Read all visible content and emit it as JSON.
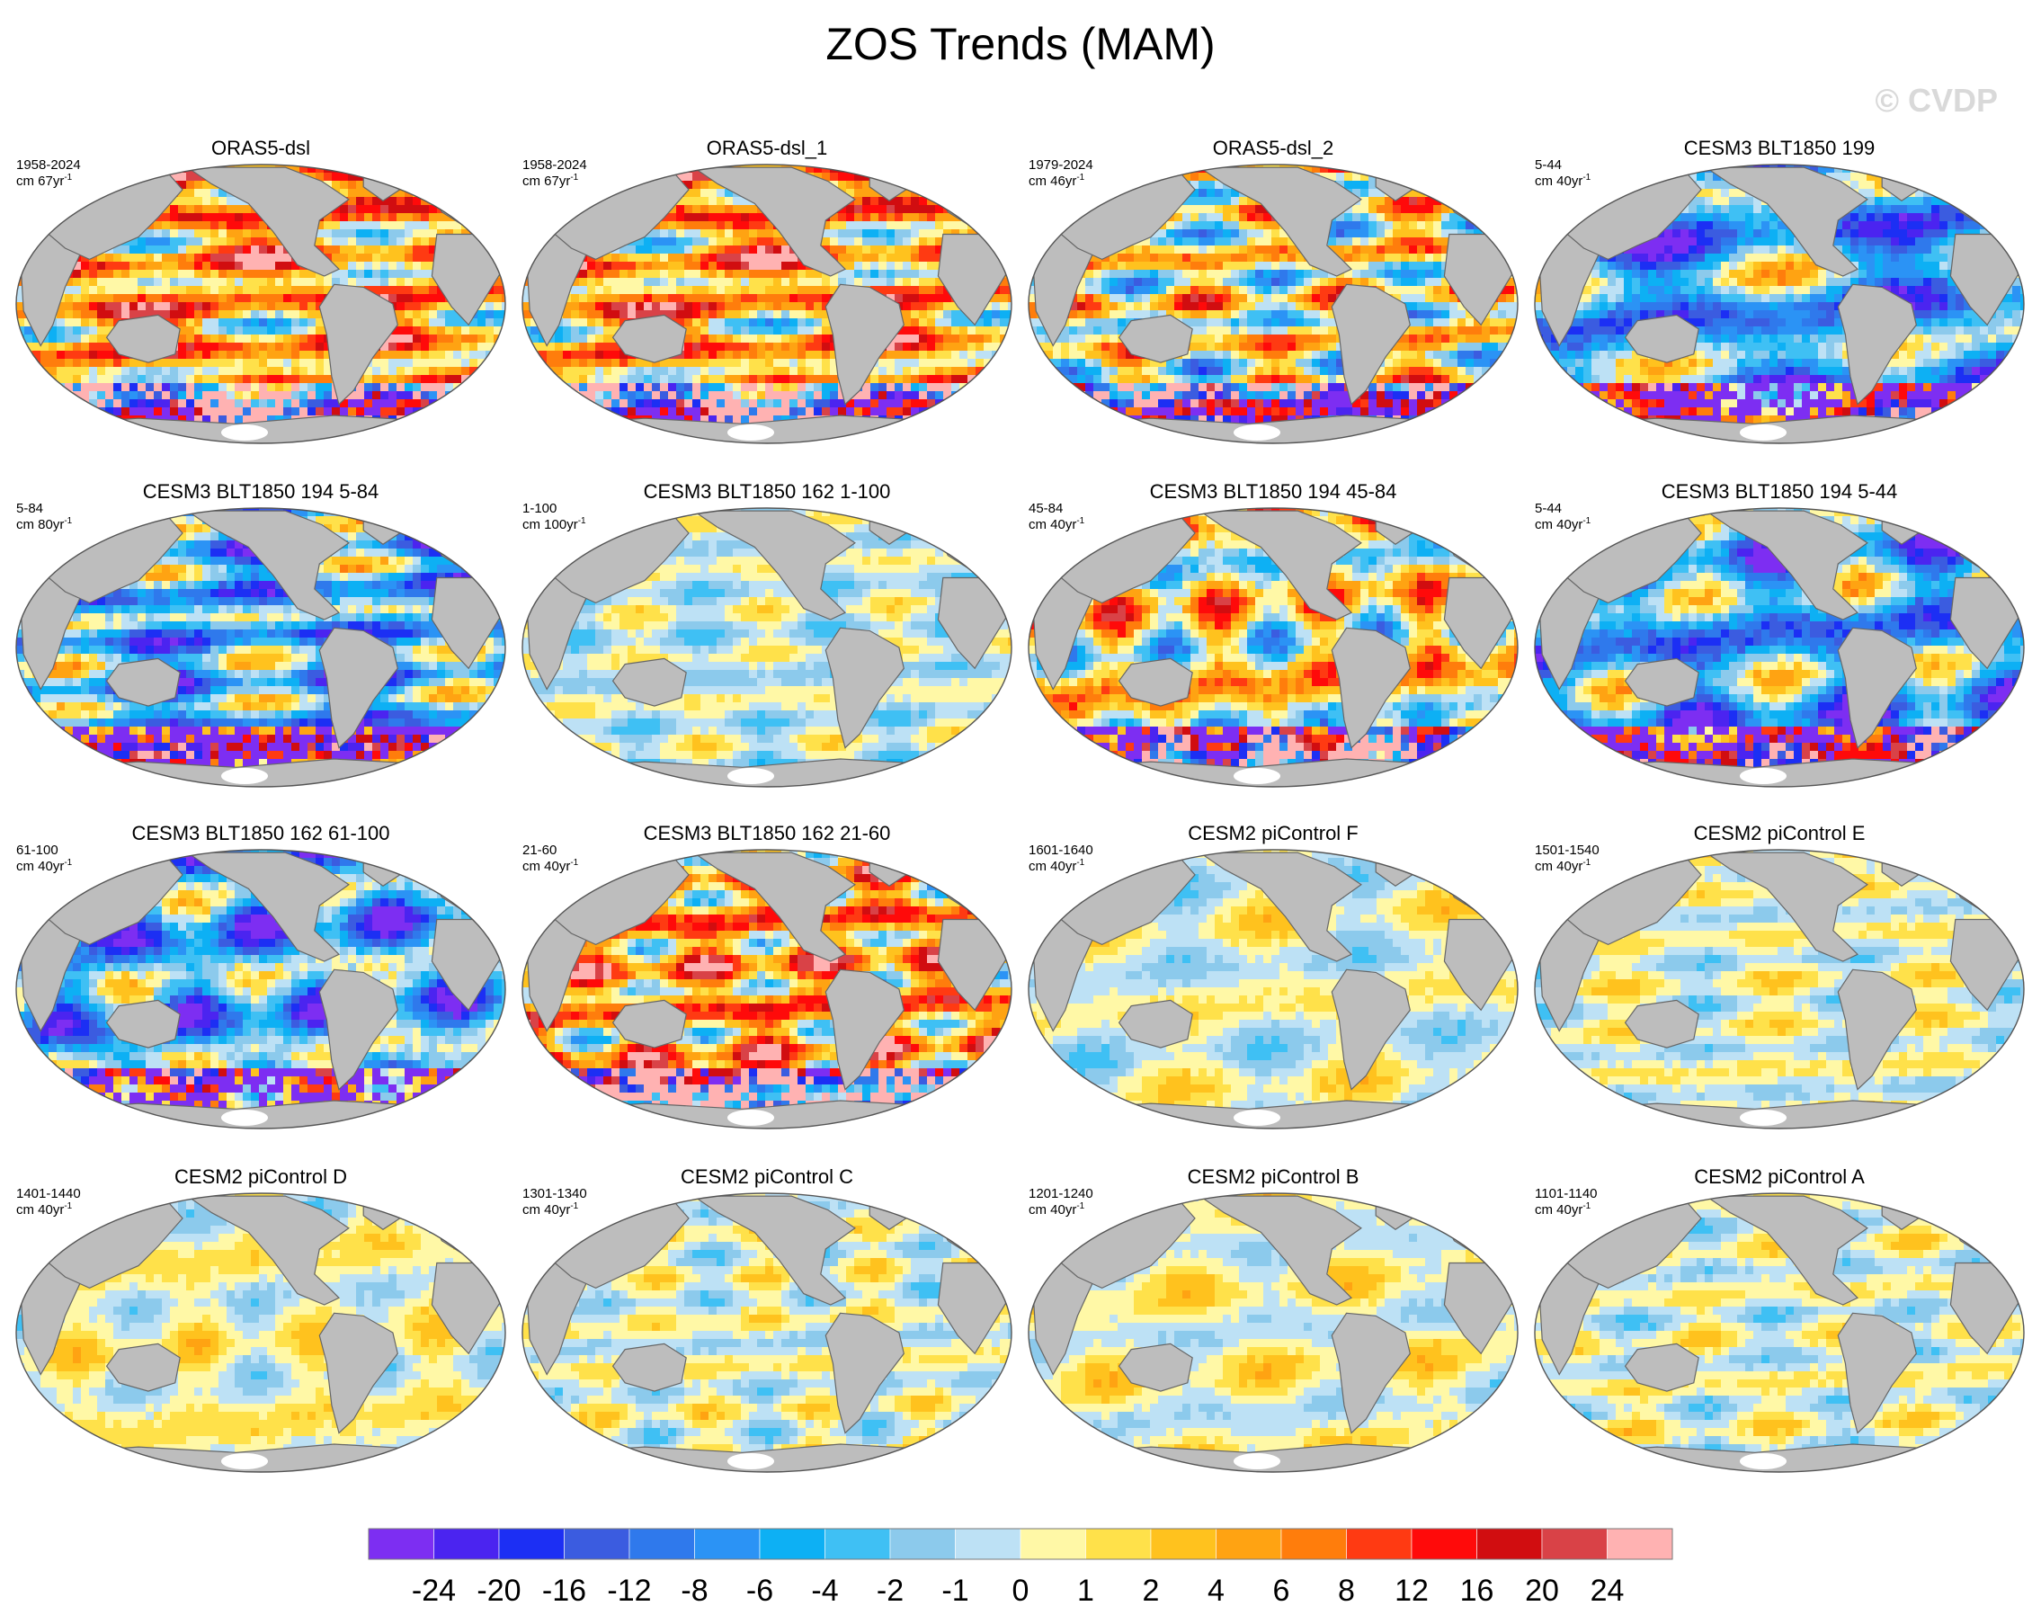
{
  "title": "ZOS Trends (MAM)",
  "watermark": "© CVDP",
  "colors": {
    "land": "#bdbdbd",
    "coast": "#666666",
    "antarctica": "#ffffff",
    "missing": "#ffffff"
  },
  "icons": {
    "ocean": "ocean-map-shading",
    "land": "continent-shapes"
  },
  "panels": [
    {
      "title": "ORAS5-dsl",
      "years": "1958-2024",
      "units": "cm 67yr",
      "unit_exp": "-1",
      "style": "strong-warm",
      "seed": 11
    },
    {
      "title": "ORAS5-dsl_1",
      "years": "1958-2024",
      "units": "cm 67yr",
      "unit_exp": "-1",
      "style": "strong-warm",
      "seed": 11
    },
    {
      "title": "ORAS5-dsl_2",
      "years": "1979-2024",
      "units": "cm 46yr",
      "unit_exp": "-1",
      "style": "strong-mixed",
      "seed": 23
    },
    {
      "title": "CESM3 BLT1850 199",
      "years": "5-44",
      "units": "cm 40yr",
      "unit_exp": "-1",
      "style": "strong-cool",
      "seed": 37
    },
    {
      "title": "CESM3 BLT1850 194 5-84",
      "years": "5-84",
      "units": "cm 80yr",
      "unit_exp": "-1",
      "style": "strong-cool",
      "seed": 41
    },
    {
      "title": "CESM3 BLT1850 162 1-100",
      "years": "1-100",
      "units": "cm 100yr",
      "unit_exp": "-1",
      "style": "weak-cool",
      "seed": 53
    },
    {
      "title": "CESM3 BLT1850 194 45-84",
      "years": "45-84",
      "units": "cm 40yr",
      "unit_exp": "-1",
      "style": "strong-mixed",
      "seed": 61
    },
    {
      "title": "CESM3 BLT1850 194 5-44",
      "years": "5-44",
      "units": "cm 40yr",
      "unit_exp": "-1",
      "style": "strong-cool",
      "seed": 73
    },
    {
      "title": "CESM3 BLT1850 162 61-100",
      "years": "61-100",
      "units": "cm 40yr",
      "unit_exp": "-1",
      "style": "strong-cool",
      "seed": 79
    },
    {
      "title": "CESM3 BLT1850 162 21-60",
      "years": "21-60",
      "units": "cm 40yr",
      "unit_exp": "-1",
      "style": "strong-warm",
      "seed": 83
    },
    {
      "title": "CESM2 piControl F",
      "years": "1601-1640",
      "units": "cm 40yr",
      "unit_exp": "-1",
      "style": "weak-mixed",
      "seed": 97
    },
    {
      "title": "CESM2 piControl E",
      "years": "1501-1540",
      "units": "cm 40yr",
      "unit_exp": "-1",
      "style": "weak-mixed",
      "seed": 101
    },
    {
      "title": "CESM2 piControl D",
      "years": "1401-1440",
      "units": "cm 40yr",
      "unit_exp": "-1",
      "style": "weak-warm",
      "seed": 109
    },
    {
      "title": "CESM2 piControl C",
      "years": "1301-1340",
      "units": "cm 40yr",
      "unit_exp": "-1",
      "style": "weak-mixed",
      "seed": 113
    },
    {
      "title": "CESM2 piControl B",
      "years": "1201-1240",
      "units": "cm 40yr",
      "unit_exp": "-1",
      "style": "weak-warm",
      "seed": 127
    },
    {
      "title": "CESM2 piControl A",
      "years": "1101-1140",
      "units": "cm 40yr",
      "unit_exp": "-1",
      "style": "weak-mixed",
      "seed": 131
    }
  ],
  "chart_data": {
    "type": "heatmap",
    "title": "ZOS Trends (MAM)",
    "projection": "Robinson (global)",
    "panel_grid": {
      "rows": 4,
      "cols": 4
    },
    "colorbar": {
      "orientation": "horizontal",
      "placement": "bottom",
      "labels": [
        "-24",
        "-20",
        "-16",
        "-12",
        "-8",
        "-6",
        "-4",
        "-2",
        "-1",
        "0",
        "1",
        "2",
        "4",
        "6",
        "8",
        "12",
        "16",
        "20",
        "24"
      ],
      "colors": [
        "#7d2ef2",
        "#4b24f0",
        "#1c2ff4",
        "#3b5ce0",
        "#2f79ec",
        "#2b93f5",
        "#0db0f4",
        "#3fc0f4",
        "#8ccaec",
        "#bde1f5",
        "#fff8a6",
        "#ffe14a",
        "#ffc21e",
        "#ffa312",
        "#ff7d0c",
        "#ff3a12",
        "#ff0a0a",
        "#d10d10",
        "#d94247",
        "#ffb2b2"
      ]
    }
  }
}
